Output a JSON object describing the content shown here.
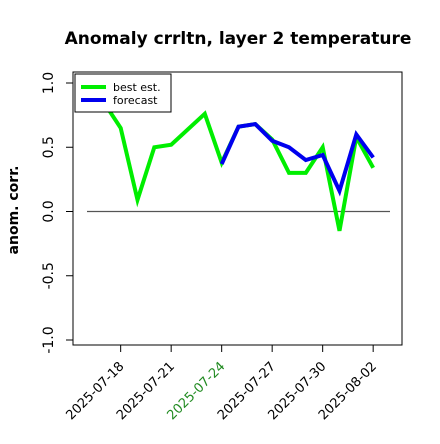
{
  "chart_data": {
    "type": "line",
    "title": "Anomaly crrltn, layer 2 temperature",
    "ylabel": "anom. corr.",
    "xlabel": "",
    "ylim": [
      -1.0,
      1.0
    ],
    "yticks": [
      -1.0,
      -0.5,
      0.0,
      0.5,
      1.0
    ],
    "ytick_labels": [
      "-1.0",
      "-0.5",
      "0.0",
      "0.5",
      "1.0"
    ],
    "xlim": [
      "2025-07-16",
      "2025-08-03"
    ],
    "xticks": [
      "2025-07-18",
      "2025-07-21",
      "2025-07-24",
      "2025-07-27",
      "2025-07-30",
      "2025-08-02"
    ],
    "highlighted_xtick": "2025-07-24",
    "reference_line": 0.0,
    "grid": false,
    "legend_position": "top-left",
    "series": [
      {
        "name": "best est.",
        "color": "#00ee00",
        "points": [
          [
            "2025-07-17",
            0.85
          ],
          [
            "2025-07-18",
            0.65
          ],
          [
            "2025-07-19",
            0.09
          ],
          [
            "2025-07-20",
            0.5
          ],
          [
            "2025-07-21",
            0.52
          ],
          [
            "2025-07-23",
            0.76
          ],
          [
            "2025-07-24",
            0.38
          ],
          [
            "2025-07-25",
            0.66
          ],
          [
            "2025-07-26",
            0.68
          ],
          [
            "2025-07-27",
            0.56
          ],
          [
            "2025-07-28",
            0.3
          ],
          [
            "2025-07-29",
            0.3
          ],
          [
            "2025-07-30",
            0.5
          ],
          [
            "2025-07-31",
            -0.15
          ],
          [
            "2025-08-01",
            0.58
          ],
          [
            "2025-08-02",
            0.34
          ]
        ]
      },
      {
        "name": "forecast",
        "color": "#0000ee",
        "points": [
          [
            "2025-07-24",
            0.37
          ],
          [
            "2025-07-25",
            0.66
          ],
          [
            "2025-07-26",
            0.68
          ],
          [
            "2025-07-27",
            0.55
          ],
          [
            "2025-07-28",
            0.5
          ],
          [
            "2025-07-29",
            0.4
          ],
          [
            "2025-07-30",
            0.44
          ],
          [
            "2025-07-31",
            0.16
          ],
          [
            "2025-08-01",
            0.6
          ],
          [
            "2025-08-02",
            0.42
          ]
        ]
      }
    ]
  },
  "colors": {
    "axis": "#000000",
    "zero_line": "#555555",
    "highlight_tick_label": "#228b22"
  }
}
